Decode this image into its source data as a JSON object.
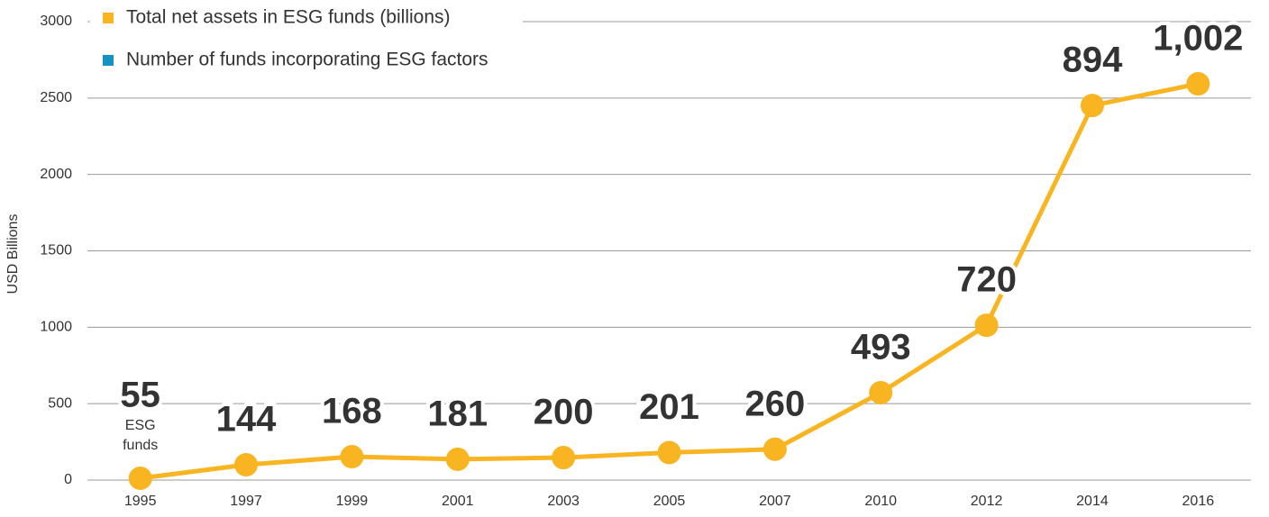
{
  "chart_data": {
    "type": "line",
    "y_label": "USD Billions",
    "categories": [
      "1995",
      "1997",
      "1999",
      "2001",
      "2003",
      "2005",
      "2007",
      "2010",
      "2012",
      "2014",
      "2016"
    ],
    "series": [
      {
        "name": "Total net assets in ESG funds (billions)",
        "color": "#f9b521",
        "values": [
          12,
          100,
          153,
          136,
          147,
          180,
          202,
          572,
          1013,
          2451,
          2593
        ]
      },
      {
        "name": "Number of funds incorporating ESG factors",
        "color": "#1591c4",
        "values": [
          55,
          144,
          168,
          181,
          200,
          201,
          260,
          493,
          720,
          894,
          1002
        ],
        "value_labels": [
          "55",
          "144",
          "168",
          "181",
          "200",
          "201",
          "260",
          "493",
          "720",
          "894",
          "1,002"
        ]
      }
    ],
    "annotation": [
      "ESG",
      "funds"
    ],
    "ylim": [
      0,
      3000
    ],
    "yticks": [
      0,
      500,
      1000,
      1500,
      2000,
      2500,
      3000
    ],
    "grid": true
  }
}
